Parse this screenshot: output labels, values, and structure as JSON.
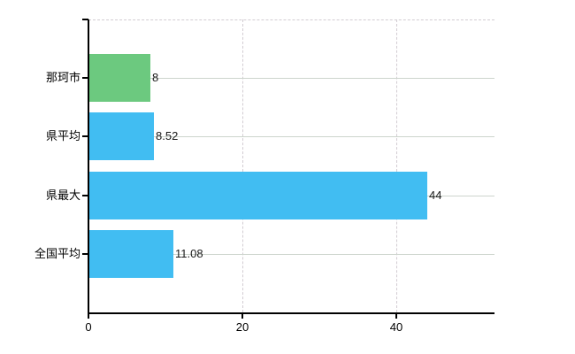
{
  "page": {
    "background": "#ffffff"
  },
  "chart_data": {
    "type": "bar",
    "orientation": "horizontal",
    "title": "",
    "xlabel": "",
    "ylabel": "",
    "categories": [
      "那珂市",
      "県平均",
      "県最大",
      "全国平均"
    ],
    "values": [
      8,
      8.52,
      44,
      11.08
    ],
    "value_labels": [
      "8",
      "8.52",
      "44",
      "11.08"
    ],
    "bar_colors": [
      "#6cc97f",
      "#41bdf2",
      "#41bdf2",
      "#41bdf2"
    ],
    "xlim": [
      0,
      52.8
    ],
    "xticks": [
      0,
      20,
      40
    ],
    "xtick_labels": [
      "0",
      "20",
      "40"
    ],
    "legend": "none",
    "grid": {
      "horizontal": "solid",
      "vertical": "dashed",
      "top_border": "dashed"
    },
    "colors": {
      "axis": "#000000",
      "grid_horizontal": "#cdd5cd",
      "grid_vertical": "#d2ccd2",
      "plot_top_border": "#d2ccd2",
      "text": "#000000",
      "value_text": "#1a1a1a"
    }
  }
}
